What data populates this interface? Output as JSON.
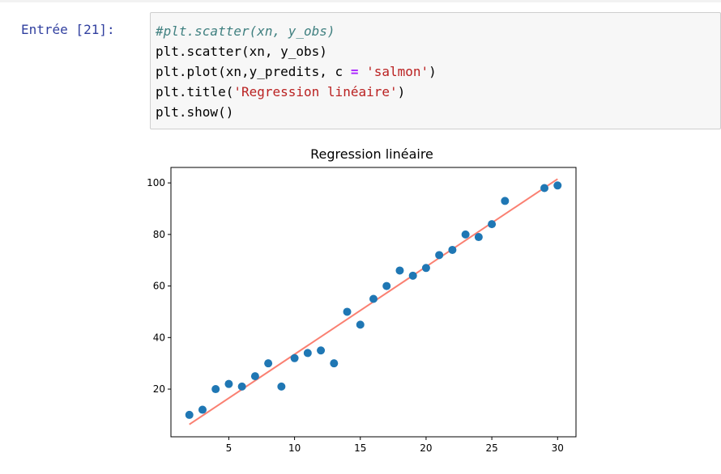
{
  "cell": {
    "prompt": "Entrée [21]:",
    "lines": {
      "l1": "#plt.scatter(xn, y_obs)",
      "l2": "plt.scatter(xn, y_obs)",
      "l3a": "plt.plot(xn,y_predits, c ",
      "l3op": "=",
      "l3sp": " ",
      "l3str": "'salmon'",
      "l3end": ")",
      "l4a": "plt.title(",
      "l4str": "'Regression linéaire'",
      "l4end": ")",
      "l5": "plt.show()"
    }
  },
  "chart_data": {
    "type": "scatter",
    "title": "Regression linéaire",
    "xlabel": "",
    "ylabel": "",
    "xlim": [
      0.6,
      31.4
    ],
    "ylim": [
      1.5,
      106
    ],
    "xticks": [
      5,
      10,
      15,
      20,
      25,
      30
    ],
    "yticks": [
      20,
      40,
      60,
      80,
      100
    ],
    "grid": false,
    "scatter_color": "#1f77b4",
    "line_color": "#fa8072",
    "points": [
      [
        2,
        10
      ],
      [
        3,
        12
      ],
      [
        4,
        20
      ],
      [
        5,
        22
      ],
      [
        6,
        21
      ],
      [
        7,
        25
      ],
      [
        8,
        30
      ],
      [
        9,
        21
      ],
      [
        10,
        32
      ],
      [
        11,
        34
      ],
      [
        12,
        35
      ],
      [
        13,
        30
      ],
      [
        14,
        50
      ],
      [
        15,
        45
      ],
      [
        16,
        55
      ],
      [
        17,
        60
      ],
      [
        18,
        66
      ],
      [
        19,
        64
      ],
      [
        20,
        67
      ],
      [
        21,
        72
      ],
      [
        22,
        74
      ],
      [
        23,
        80
      ],
      [
        24,
        79
      ],
      [
        25,
        84
      ],
      [
        26,
        93
      ],
      [
        29,
        98
      ],
      [
        30,
        99
      ]
    ],
    "line": {
      "x": [
        2,
        30
      ],
      "y": [
        6.3,
        101.5
      ]
    }
  }
}
